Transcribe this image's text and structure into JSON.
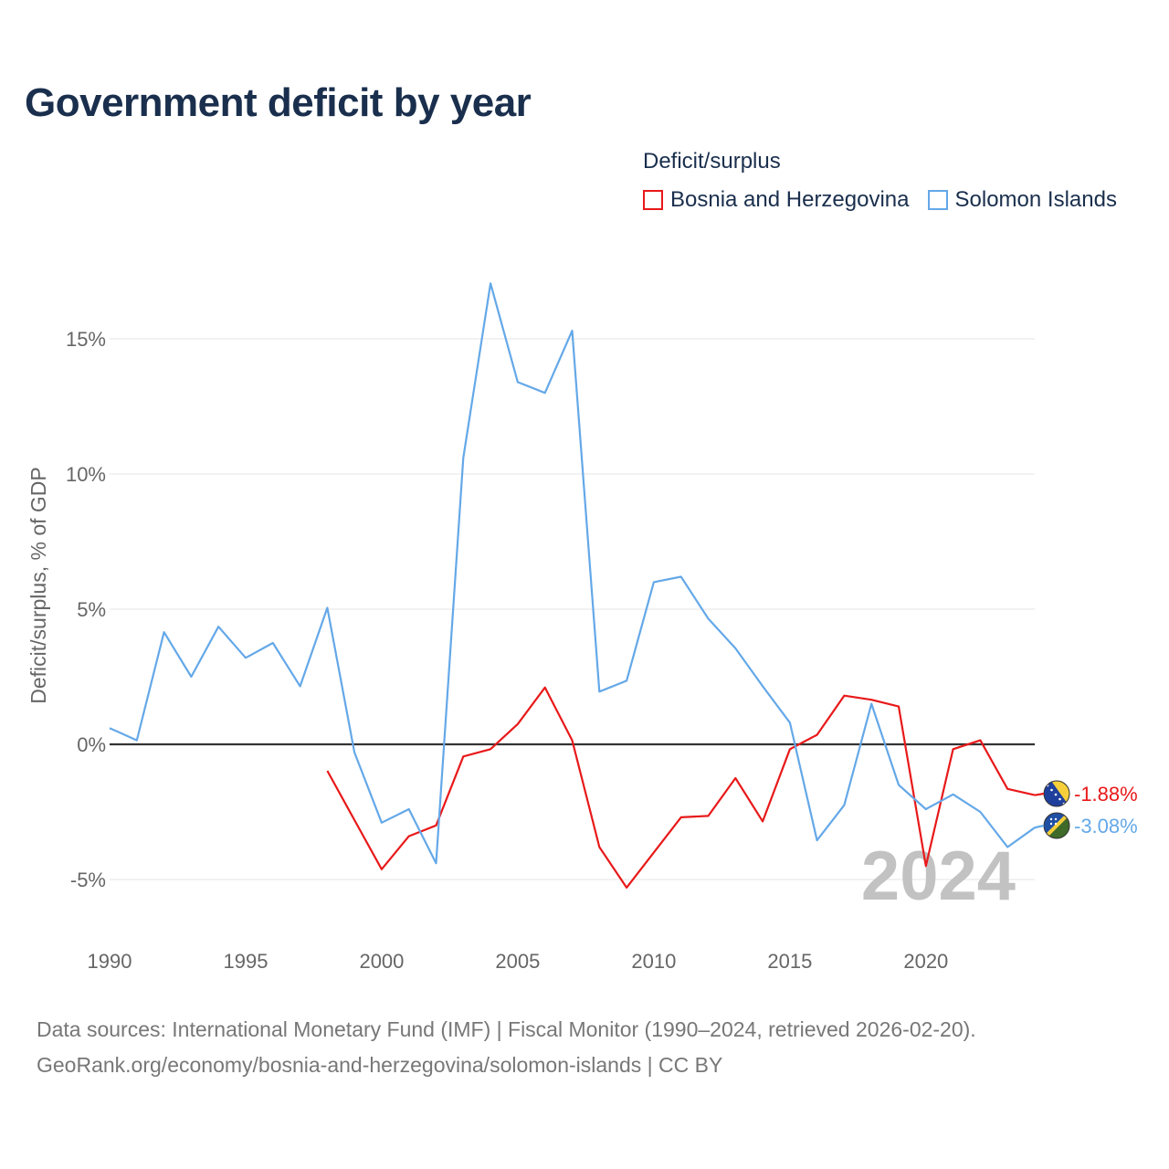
{
  "title": "Government deficit by year",
  "legend": {
    "title": "Deficit/surplus",
    "items": [
      {
        "label": "Bosnia and Herzegovina",
        "color": "#e8191a"
      },
      {
        "label": "Solomon Islands",
        "color": "#64a8e8"
      }
    ]
  },
  "footer": {
    "line1": "Data sources: International Monetary Fund (IMF) | Fiscal Monitor (1990–2024, retrieved 2026-02-20).",
    "line2": "GeoRank.org/economy/bosnia-and-herzegovina/solomon-islands | CC BY"
  },
  "chart_data": {
    "type": "line",
    "ylabel": "Deficit/surplus, % of GDP",
    "xlim": [
      1990,
      2024
    ],
    "ylim": [
      -6.5,
      17.5
    ],
    "xticks": [
      {
        "value": 1990,
        "label": "1990"
      },
      {
        "value": 1995,
        "label": "1995"
      },
      {
        "value": 2000,
        "label": "2000"
      },
      {
        "value": 2005,
        "label": "2005"
      },
      {
        "value": 2010,
        "label": "2010"
      },
      {
        "value": 2015,
        "label": "2015"
      },
      {
        "value": 2020,
        "label": "2020"
      }
    ],
    "yticks": [
      {
        "value": 15,
        "label": "15%"
      },
      {
        "value": 10,
        "label": "10%"
      },
      {
        "value": 5,
        "label": "5%"
      },
      {
        "value": 0,
        "label": "0%"
      },
      {
        "value": -5,
        "label": "-5%"
      }
    ],
    "year_label": "2024",
    "series": [
      {
        "name": "Bosnia and Herzegovina",
        "color": "#e8191a",
        "end_label": "-1.88%",
        "flag": "bosnia-flag-icon",
        "x": [
          1998,
          1999,
          2000,
          2001,
          2002,
          2003,
          2004,
          2005,
          2006,
          2007,
          2008,
          2009,
          2010,
          2011,
          2012,
          2013,
          2014,
          2015,
          2016,
          2017,
          2018,
          2019,
          2020,
          2021,
          2022,
          2023,
          2024
        ],
        "values": [
          -0.98,
          -2.8,
          -4.62,
          -3.4,
          -3.0,
          -0.45,
          -0.18,
          0.75,
          2.1,
          0.15,
          -3.8,
          -5.3,
          -4.0,
          -2.7,
          -2.65,
          -1.25,
          -2.85,
          -0.18,
          0.35,
          1.8,
          1.65,
          1.4,
          -4.5,
          -0.18,
          0.15,
          -1.65,
          -1.88
        ]
      },
      {
        "name": "Solomon Islands",
        "color": "#64a8e8",
        "end_label": "-3.08%",
        "flag": "solomon-islands-flag-icon",
        "x": [
          1990,
          1991,
          1992,
          1993,
          1994,
          1995,
          1996,
          1997,
          1998,
          1999,
          2000,
          2001,
          2002,
          2003,
          2004,
          2005,
          2006,
          2007,
          2008,
          2009,
          2010,
          2011,
          2012,
          2013,
          2014,
          2015,
          2016,
          2017,
          2018,
          2019,
          2020,
          2021,
          2022,
          2023,
          2024
        ],
        "values": [
          0.6,
          0.15,
          4.15,
          2.5,
          4.35,
          3.2,
          3.75,
          2.15,
          5.05,
          -0.3,
          -2.9,
          -2.4,
          -4.4,
          10.6,
          17.05,
          13.4,
          13.0,
          15.3,
          1.95,
          2.35,
          6.0,
          6.2,
          4.65,
          3.55,
          2.15,
          0.8,
          -3.55,
          -2.25,
          1.5,
          -1.5,
          -2.4,
          -1.85,
          -2.5,
          -3.8,
          -3.08
        ]
      }
    ]
  }
}
